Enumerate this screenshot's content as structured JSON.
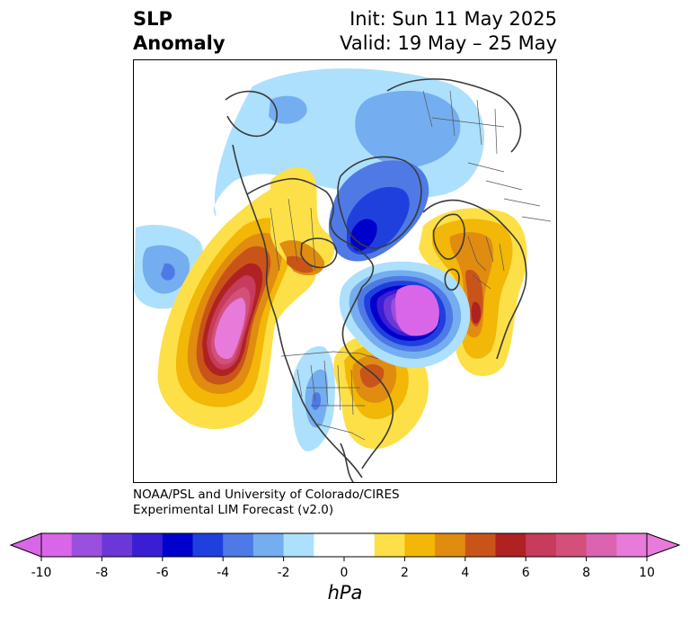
{
  "title": {
    "left_line1": "SLP",
    "left_line2": "Anomaly",
    "init": "Init: Sun 11 May 2025",
    "valid": "Valid: 19 May – 25 May"
  },
  "credit": {
    "line1": "NOAA/PSL and University of Colorado/CIRES",
    "line2": "Experimental LIM Forecast (v2.0)"
  },
  "colorbar": {
    "units": "hPa",
    "tick_labels": [
      "-10",
      "-8",
      "-6",
      "-4",
      "-2",
      "0",
      "2",
      "4",
      "6",
      "8",
      "10"
    ],
    "colors": [
      "#d966e8",
      "#9b4fde",
      "#6b38d8",
      "#3a1ed3",
      "#0000cc",
      "#2040dd",
      "#4f7ae6",
      "#74aef0",
      "#ade0fc",
      "#ffffff",
      "#ffffff",
      "#fde047",
      "#f2b707",
      "#e08c10",
      "#c9541a",
      "#b02222",
      "#c73b5c",
      "#d3507a",
      "#dc63b0",
      "#e87ad9"
    ],
    "min": -10,
    "max": 10,
    "step": 1
  },
  "map": {
    "projection": "north-polar-stereographic",
    "features": [
      "coastlines",
      "country-borders",
      "us-state-borders"
    ],
    "anomaly_centers": [
      {
        "name": "north-pacific-high",
        "peak_hPa": 10
      },
      {
        "name": "north-atlantic-low",
        "peak_hPa": -10
      },
      {
        "name": "arctic-low",
        "peak_hPa": -6
      },
      {
        "name": "europe-high",
        "peak_hPa": 6
      },
      {
        "name": "eastern-us-high",
        "peak_hPa": 5
      },
      {
        "name": "central-us-low",
        "peak_hPa": -3
      },
      {
        "name": "subtropical-pacific-low",
        "peak_hPa": -3
      }
    ]
  }
}
